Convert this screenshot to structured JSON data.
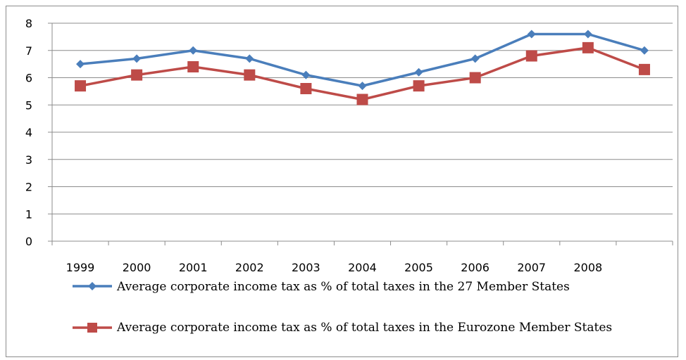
{
  "chart_data": {
    "type": "line",
    "title": "",
    "xlabel": "",
    "ylabel": "",
    "categories": [
      "1999",
      "2000",
      "2001",
      "2002",
      "2003",
      "2004",
      "2005",
      "2006",
      "2007",
      "2008",
      ""
    ],
    "ylim": [
      0,
      8
    ],
    "yticks": [
      0,
      1,
      2,
      3,
      4,
      5,
      6,
      7,
      8
    ],
    "grid": true,
    "legend_position": "bottom",
    "series": [
      {
        "name": "Average corporate income tax as  % of total taxes in the 27 Member States",
        "color": "#4a7ebb",
        "marker": "diamond",
        "values": [
          6.5,
          6.7,
          7.0,
          6.7,
          6.1,
          5.7,
          6.2,
          6.7,
          7.6,
          7.6,
          7.0
        ]
      },
      {
        "name": "Average corporate income tax as  % of total taxes in the Eurozone Member States",
        "color": "#be4b48",
        "marker": "square",
        "values": [
          5.7,
          6.1,
          6.4,
          6.1,
          5.6,
          5.2,
          5.7,
          6.0,
          6.8,
          7.1,
          6.3
        ]
      }
    ]
  }
}
